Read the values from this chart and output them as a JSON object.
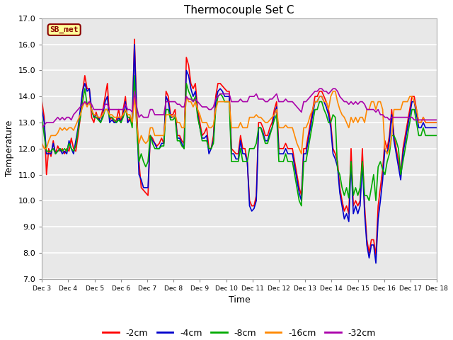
{
  "title": "Thermocouple Set C",
  "xlabel": "Time",
  "ylabel": "Temperature",
  "ylim": [
    7.0,
    17.0
  ],
  "yticks": [
    7.0,
    8.0,
    9.0,
    10.0,
    11.0,
    12.0,
    13.0,
    14.0,
    15.0,
    16.0,
    17.0
  ],
  "xtick_labels": [
    "Dec 3",
    "Dec 4",
    "Dec 5",
    "Dec 6",
    "Dec 7",
    "Dec 8",
    "Dec 9",
    "Dec 10",
    "Dec 11",
    "Dec 12",
    "Dec 13",
    "Dec 14",
    "Dec 15",
    "Dec 16",
    "Dec 17",
    "Dec 18"
  ],
  "series_order": [
    "-2cm",
    "-4cm",
    "-8cm",
    "-16cm",
    "-32cm"
  ],
  "series": {
    "-2cm": {
      "color": "#ff0000",
      "lw": 1.2
    },
    "-4cm": {
      "color": "#0000cc",
      "lw": 1.2
    },
    "-8cm": {
      "color": "#00aa00",
      "lw": 1.2
    },
    "-16cm": {
      "color": "#ff8800",
      "lw": 1.2
    },
    "-32cm": {
      "color": "#aa00aa",
      "lw": 1.2
    }
  },
  "annotation": {
    "text": "SB_met",
    "facecolor": "#ffff99",
    "edgecolor": "#8b0000",
    "textcolor": "#8b0000",
    "fontsize": 8,
    "fontweight": "bold"
  },
  "bg_color": "#e8e8e8",
  "fig_bg": "#ffffff",
  "grid_color": "#ffffff",
  "series_data": {
    "-2cm": [
      13.8,
      13.2,
      11.0,
      12.0,
      11.7,
      12.3,
      11.8,
      12.1,
      11.9,
      12.0,
      11.8,
      12.0,
      11.9,
      12.4,
      12.0,
      11.9,
      12.5,
      13.2,
      14.2,
      14.8,
      14.3,
      14.3,
      13.2,
      13.0,
      13.4,
      13.1,
      13.2,
      13.5,
      14.0,
      14.5,
      13.1,
      13.2,
      13.0,
      13.1,
      13.5,
      13.0,
      13.5,
      14.0,
      13.0,
      13.2,
      13.0,
      16.2,
      13.5,
      11.5,
      10.5,
      10.4,
      10.3,
      10.2,
      12.5,
      12.4,
      12.2,
      12.1,
      12.2,
      12.4,
      12.2,
      14.2,
      14.0,
      13.3,
      13.3,
      13.5,
      12.5,
      12.5,
      12.3,
      12.2,
      15.5,
      15.2,
      14.5,
      14.3,
      14.5,
      13.5,
      13.0,
      12.5,
      12.6,
      12.8,
      12.0,
      12.0,
      12.5,
      14.0,
      14.5,
      14.5,
      14.4,
      14.3,
      14.2,
      14.2,
      12.0,
      11.9,
      11.8,
      11.8,
      12.5,
      12.0,
      12.0,
      11.5,
      10.0,
      9.8,
      9.8,
      10.2,
      13.0,
      13.0,
      12.8,
      12.5,
      12.5,
      12.8,
      13.0,
      13.5,
      13.8,
      12.0,
      12.0,
      12.0,
      12.2,
      12.0,
      12.0,
      12.0,
      11.5,
      11.0,
      10.5,
      10.2,
      12.0,
      12.0,
      12.5,
      13.0,
      13.5,
      14.0,
      14.0,
      14.2,
      14.2,
      14.0,
      13.8,
      13.5,
      13.0,
      12.0,
      11.8,
      11.5,
      10.5,
      10.0,
      9.6,
      9.8,
      9.5,
      12.0,
      9.8,
      10.0,
      9.8,
      10.0,
      12.0,
      9.8,
      8.5,
      8.0,
      8.5,
      8.5,
      7.9,
      9.8,
      10.5,
      11.2,
      12.3,
      12.0,
      12.5,
      13.5,
      12.5,
      12.0,
      11.5,
      11.0,
      12.0,
      12.5,
      13.0,
      13.5,
      14.0,
      14.0,
      13.5,
      13.0,
      13.0,
      13.2,
      13.0,
      13.0,
      13.0,
      13.0,
      13.0,
      13.0
    ],
    "-4cm": [
      13.5,
      13.0,
      11.8,
      11.8,
      11.8,
      12.2,
      11.8,
      11.9,
      12.0,
      11.8,
      11.9,
      11.8,
      12.3,
      12.0,
      11.8,
      12.3,
      12.8,
      13.5,
      14.2,
      14.5,
      14.2,
      14.3,
      13.5,
      13.2,
      13.3,
      13.2,
      13.0,
      13.3,
      13.8,
      14.0,
      13.0,
      13.1,
      13.0,
      13.0,
      13.2,
      13.0,
      13.3,
      13.8,
      13.0,
      13.1,
      13.0,
      16.0,
      13.2,
      11.0,
      10.8,
      10.5,
      10.5,
      10.5,
      12.5,
      12.3,
      12.2,
      12.0,
      12.0,
      12.2,
      12.2,
      14.0,
      13.8,
      13.2,
      13.2,
      13.3,
      12.4,
      12.4,
      12.2,
      12.0,
      15.0,
      14.8,
      14.3,
      14.0,
      14.2,
      13.3,
      12.8,
      12.4,
      12.4,
      12.5,
      11.8,
      12.0,
      12.3,
      13.8,
      14.2,
      14.3,
      14.2,
      14.0,
      14.0,
      14.0,
      11.8,
      11.8,
      11.6,
      11.6,
      12.3,
      11.8,
      11.8,
      11.5,
      9.8,
      9.6,
      9.7,
      10.0,
      12.8,
      12.8,
      12.6,
      12.3,
      12.3,
      12.6,
      12.8,
      13.3,
      13.6,
      11.8,
      11.8,
      11.8,
      12.0,
      11.8,
      11.8,
      11.8,
      11.3,
      10.8,
      10.3,
      10.0,
      11.8,
      11.8,
      12.3,
      12.8,
      13.3,
      13.8,
      13.8,
      14.0,
      14.0,
      13.8,
      13.6,
      13.3,
      12.8,
      11.8,
      11.6,
      11.3,
      10.3,
      9.8,
      9.3,
      9.5,
      9.2,
      11.5,
      9.5,
      9.8,
      9.5,
      9.8,
      11.5,
      9.5,
      8.3,
      7.8,
      8.3,
      8.3,
      7.6,
      9.3,
      10.0,
      10.8,
      12.0,
      11.8,
      12.3,
      13.3,
      12.3,
      11.8,
      11.3,
      10.8,
      11.8,
      12.3,
      12.8,
      13.3,
      13.8,
      13.8,
      13.3,
      12.8,
      12.8,
      13.0,
      12.8,
      12.8,
      12.8,
      12.8,
      12.8,
      12.8
    ],
    "-8cm": [
      13.2,
      12.5,
      11.9,
      11.9,
      11.9,
      12.0,
      11.8,
      11.9,
      12.0,
      11.9,
      12.0,
      11.9,
      12.2,
      12.0,
      11.9,
      12.1,
      12.7,
      13.2,
      13.8,
      14.3,
      13.7,
      13.8,
      13.5,
      13.2,
      13.2,
      13.1,
      13.0,
      13.2,
      13.5,
      13.5,
      13.2,
      13.2,
      13.1,
      13.0,
      13.1,
      13.0,
      13.2,
      13.5,
      13.2,
      13.2,
      12.8,
      14.8,
      12.8,
      11.5,
      11.8,
      11.5,
      11.3,
      11.5,
      12.5,
      12.2,
      12.0,
      12.0,
      12.0,
      12.1,
      12.1,
      13.5,
      13.5,
      13.1,
      13.1,
      13.2,
      12.3,
      12.3,
      12.1,
      12.0,
      14.5,
      14.2,
      14.0,
      13.8,
      14.0,
      13.2,
      12.8,
      12.3,
      12.3,
      12.3,
      12.0,
      12.0,
      12.2,
      13.5,
      14.0,
      14.1,
      14.0,
      13.8,
      13.8,
      13.8,
      11.5,
      11.5,
      11.5,
      11.5,
      12.0,
      11.5,
      11.5,
      11.5,
      12.0,
      12.0,
      12.0,
      12.2,
      12.8,
      12.8,
      12.5,
      12.2,
      12.2,
      12.5,
      12.8,
      13.1,
      13.3,
      11.5,
      11.5,
      11.5,
      11.8,
      11.5,
      11.5,
      11.5,
      11.0,
      10.5,
      10.0,
      9.8,
      11.5,
      11.5,
      12.0,
      12.5,
      13.0,
      13.5,
      13.5,
      13.8,
      13.8,
      13.5,
      13.3,
      13.0,
      13.0,
      13.3,
      13.2,
      11.2,
      11.0,
      10.5,
      10.2,
      10.5,
      10.1,
      11.5,
      10.2,
      10.5,
      10.2,
      10.5,
      11.5,
      10.2,
      10.2,
      10.0,
      10.5,
      11.0,
      10.0,
      11.3,
      11.5,
      11.2,
      11.0,
      11.5,
      11.8,
      12.5,
      12.5,
      12.3,
      12.0,
      11.0,
      11.5,
      12.0,
      12.5,
      13.0,
      13.5,
      13.5,
      13.0,
      12.5,
      12.5,
      12.8,
      12.5,
      12.5,
      12.5,
      12.5,
      12.5,
      12.5
    ],
    "-16cm": [
      12.2,
      12.0,
      12.0,
      12.3,
      12.5,
      12.5,
      12.5,
      12.6,
      12.8,
      12.7,
      12.8,
      12.7,
      12.8,
      12.8,
      12.7,
      12.9,
      13.1,
      13.3,
      13.6,
      13.8,
      13.6,
      13.8,
      13.5,
      13.3,
      13.3,
      13.2,
      13.2,
      13.3,
      13.5,
      13.5,
      13.3,
      13.3,
      13.2,
      13.2,
      13.2,
      13.2,
      13.3,
      13.5,
      13.3,
      13.3,
      13.0,
      14.0,
      13.0,
      12.2,
      12.5,
      12.3,
      12.2,
      12.3,
      12.8,
      12.8,
      12.5,
      12.5,
      12.5,
      12.5,
      12.5,
      13.3,
      13.3,
      13.3,
      13.2,
      13.3,
      13.0,
      13.0,
      12.8,
      12.8,
      14.0,
      13.8,
      13.8,
      13.6,
      13.8,
      13.5,
      13.3,
      13.0,
      13.0,
      13.0,
      12.8,
      12.8,
      12.9,
      13.5,
      13.8,
      13.8,
      13.8,
      13.8,
      13.8,
      13.8,
      12.8,
      12.8,
      12.8,
      12.8,
      13.0,
      12.8,
      12.8,
      12.8,
      13.2,
      13.2,
      13.2,
      13.3,
      13.2,
      13.2,
      13.1,
      13.0,
      13.0,
      13.1,
      13.2,
      13.3,
      13.5,
      12.8,
      12.8,
      12.8,
      12.9,
      12.8,
      12.8,
      12.8,
      12.5,
      12.2,
      12.0,
      11.8,
      12.8,
      12.8,
      13.0,
      13.3,
      13.5,
      13.8,
      13.8,
      14.0,
      14.0,
      13.8,
      13.8,
      13.5,
      14.0,
      14.2,
      14.2,
      13.8,
      13.5,
      13.3,
      13.2,
      13.0,
      12.8,
      13.2,
      13.0,
      13.2,
      13.0,
      13.2,
      13.2,
      13.0,
      13.5,
      13.5,
      13.8,
      13.8,
      13.5,
      13.8,
      13.8,
      13.5,
      12.0,
      11.8,
      12.0,
      12.5,
      13.5,
      13.5,
      13.5,
      13.5,
      13.8,
      13.8,
      13.8,
      14.0,
      14.0,
      13.8,
      13.5,
      13.0,
      13.0,
      13.2,
      13.0,
      13.0,
      13.0,
      13.0,
      13.0,
      13.0
    ],
    "-32cm": [
      12.8,
      12.9,
      13.0,
      13.0,
      13.0,
      13.0,
      13.1,
      13.2,
      13.1,
      13.2,
      13.1,
      13.2,
      13.2,
      13.1,
      13.3,
      13.4,
      13.5,
      13.6,
      13.7,
      13.8,
      13.7,
      13.8,
      13.7,
      13.5,
      13.5,
      13.5,
      13.5,
      13.5,
      13.7,
      13.7,
      13.5,
      13.5,
      13.5,
      13.5,
      13.5,
      13.5,
      13.5,
      13.7,
      13.5,
      13.5,
      13.4,
      14.2,
      13.6,
      13.2,
      13.3,
      13.2,
      13.2,
      13.2,
      13.5,
      13.5,
      13.3,
      13.3,
      13.3,
      13.3,
      13.3,
      13.8,
      13.8,
      13.8,
      13.8,
      13.8,
      13.7,
      13.7,
      13.6,
      13.6,
      14.0,
      13.9,
      13.9,
      13.8,
      13.9,
      13.8,
      13.7,
      13.6,
      13.6,
      13.6,
      13.5,
      13.5,
      13.6,
      13.9,
      14.0,
      14.1,
      14.1,
      14.1,
      14.1,
      14.1,
      13.8,
      13.8,
      13.8,
      13.8,
      13.9,
      13.8,
      13.8,
      13.8,
      14.0,
      14.0,
      14.0,
      14.1,
      13.9,
      13.9,
      13.9,
      13.8,
      13.8,
      13.9,
      13.9,
      14.0,
      14.1,
      13.8,
      13.8,
      13.8,
      13.9,
      13.8,
      13.8,
      13.8,
      13.7,
      13.6,
      13.5,
      13.4,
      13.8,
      13.8,
      13.9,
      14.0,
      14.1,
      14.2,
      14.2,
      14.3,
      14.3,
      14.2,
      14.2,
      14.1,
      14.2,
      14.3,
      14.3,
      14.2,
      14.0,
      13.9,
      13.8,
      13.8,
      13.7,
      13.8,
      13.7,
      13.8,
      13.7,
      13.8,
      13.8,
      13.7,
      13.5,
      13.5,
      13.5,
      13.5,
      13.4,
      13.5,
      13.3,
      13.3,
      13.2,
      13.2,
      13.1,
      13.2,
      13.2,
      13.2,
      13.2,
      13.2,
      13.2,
      13.2,
      13.2,
      13.2,
      13.2,
      13.1,
      13.1,
      13.1,
      13.1,
      13.1,
      13.1,
      13.1,
      13.1,
      13.1,
      13.1,
      13.1
    ]
  }
}
